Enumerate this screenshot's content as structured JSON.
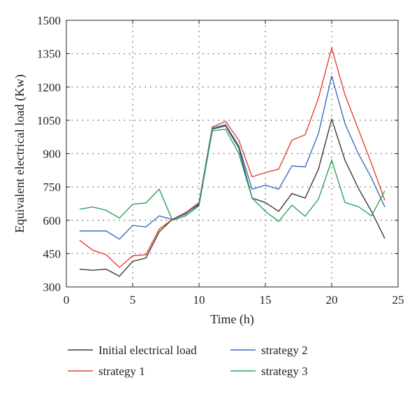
{
  "chart_data": {
    "type": "line",
    "title": "",
    "xlabel": "Time (h)",
    "ylabel": "Equivalent electrical load (Kw)",
    "xlim": [
      0,
      25
    ],
    "ylim": [
      300,
      1500
    ],
    "xticks": [
      0,
      5,
      10,
      15,
      20,
      25
    ],
    "yticks": [
      300,
      450,
      600,
      750,
      900,
      1050,
      1200,
      1350,
      1500
    ],
    "grid": "dotted",
    "legend_position": "bottom",
    "x": [
      1,
      2,
      3,
      4,
      5,
      6,
      7,
      8,
      9,
      10,
      11,
      12,
      13,
      14,
      15,
      16,
      17,
      18,
      19,
      20,
      21,
      22,
      23,
      24
    ],
    "series": [
      {
        "name": "Initial electrical load",
        "color": "#3a3a3a",
        "values": [
          380,
          375,
          380,
          348,
          415,
          430,
          548,
          605,
          630,
          670,
          1010,
          1025,
          925,
          700,
          680,
          640,
          720,
          700,
          830,
          1055,
          870,
          745,
          640,
          518
        ]
      },
      {
        "name": "strategy 1",
        "color": "#e8402f",
        "values": [
          510,
          465,
          445,
          388,
          440,
          445,
          560,
          605,
          635,
          680,
          1020,
          1045,
          960,
          795,
          815,
          830,
          960,
          985,
          1150,
          1375,
          1165,
          1010,
          855,
          690
        ]
      },
      {
        "name": "strategy 2",
        "color": "#3c6cc4",
        "values": [
          552,
          552,
          552,
          515,
          577,
          570,
          620,
          603,
          628,
          675,
          1015,
          1030,
          935,
          740,
          758,
          740,
          845,
          840,
          990,
          1250,
          1035,
          900,
          790,
          660
        ]
      },
      {
        "name": "strategy 3",
        "color": "#2aa35a",
        "values": [
          650,
          660,
          645,
          610,
          672,
          678,
          740,
          600,
          620,
          665,
          1002,
          1010,
          900,
          700,
          640,
          595,
          668,
          618,
          695,
          870,
          680,
          662,
          620,
          732
        ]
      }
    ]
  }
}
